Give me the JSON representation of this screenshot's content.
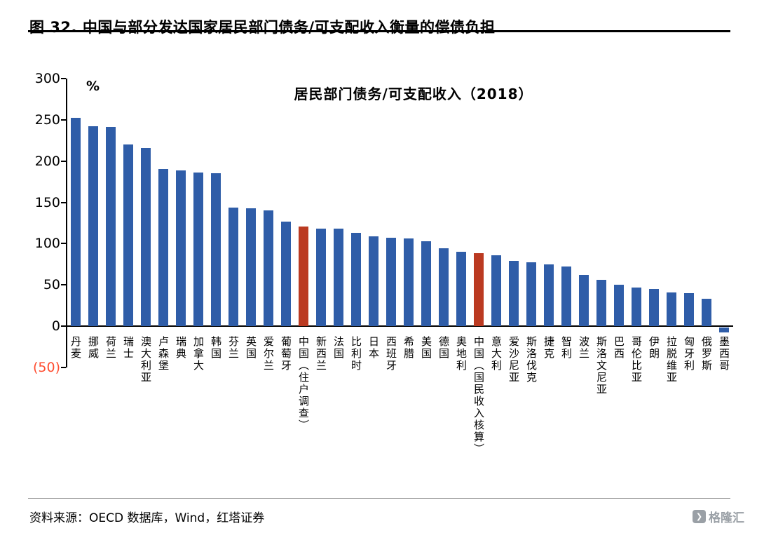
{
  "title": "图 32. 中国与部分发达国家居民部门债务/可支配收入衡量的偿债负担",
  "chart_data": {
    "type": "bar",
    "title": "居民部门债务/可支配收入（2018）",
    "xlabel": "",
    "ylabel": "%",
    "ylim": [
      -50,
      300
    ],
    "grid": false,
    "legend": "none",
    "bar_color": "#2f5da8",
    "highlight_color": "#bb3a21",
    "negative_label_color": "#ff4d30",
    "highlight_indices": [
      13,
      23
    ],
    "y_ticks": [
      {
        "label": "300",
        "value": 300
      },
      {
        "label": "250",
        "value": 250
      },
      {
        "label": "200",
        "value": 200
      },
      {
        "label": "150",
        "value": 150
      },
      {
        "label": "100",
        "value": 100
      },
      {
        "label": "50",
        "value": 50
      },
      {
        "label": "0",
        "value": 0
      },
      {
        "label": "(50)",
        "value": -50
      }
    ],
    "categories": [
      "丹麦",
      "挪威",
      "荷兰",
      "瑞士",
      "澳大利亚",
      "卢森堡",
      "瑞典",
      "加拿大",
      "韩国",
      "芬兰",
      "英国",
      "爱尔兰",
      "葡萄牙",
      "中国（住户调查）",
      "新西兰",
      "法国",
      "比利时",
      "日本",
      "西班牙",
      "希腊",
      "美国",
      "德国",
      "奥地利",
      "中国（国民收入核算）",
      "意大利",
      "爱沙尼亚",
      "斯洛伐克",
      "捷克",
      "智利",
      "波兰",
      "斯洛文尼亚",
      "巴西",
      "哥伦比亚",
      "伊朗",
      "拉脱维亚",
      "匈牙利",
      "俄罗斯",
      "墨西哥"
    ],
    "values": [
      252,
      242,
      241,
      220,
      216,
      190,
      189,
      186,
      185,
      144,
      143,
      140,
      127,
      121,
      118,
      118,
      113,
      109,
      107,
      106,
      103,
      94,
      90,
      88,
      86,
      79,
      77,
      75,
      72,
      62,
      56,
      50,
      47,
      45,
      41,
      40,
      33,
      -6
    ]
  },
  "footer": {
    "source": "资料来源：OECD 数据库，Wind，红塔证券",
    "logo_text": "格隆汇"
  }
}
